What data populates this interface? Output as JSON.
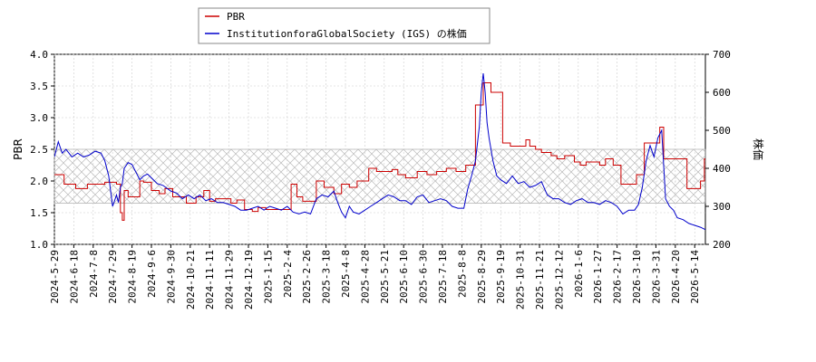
{
  "chart_data": {
    "type": "line",
    "title": "",
    "legend": {
      "placement": "top-center",
      "entries": [
        {
          "label": "PBR",
          "color": "#cc0000"
        },
        {
          "label": "InstitutionforaGlobalSociety (IGS) の株価",
          "color": "#0000cc"
        }
      ]
    },
    "y_left": {
      "label": "PBR",
      "ylim": [
        1.0,
        4.0
      ],
      "ticks": [
        "1.0",
        "1.5",
        "2.0",
        "2.5",
        "3.0",
        "3.5",
        "4.0"
      ]
    },
    "y_right": {
      "label": "株価",
      "ylim": [
        200,
        700
      ],
      "ticks": [
        "200",
        "300",
        "400",
        "500",
        "600",
        "700"
      ]
    },
    "x_ticks": [
      "2024-5-29",
      "2024-6-18",
      "2024-7-8",
      "2024-7-29",
      "2024-8-19",
      "2024-9-6",
      "2024-9-30",
      "2024-10-21",
      "2024-11-11",
      "2024-11-29",
      "2024-12-19",
      "2025-1-15",
      "2025-2-4",
      "2025-2-26",
      "2025-3-18",
      "2025-4-8",
      "2025-4-28",
      "2025-5-21",
      "2025-6-10",
      "2025-6-30",
      "2025-7-18",
      "2025-8-8",
      "2025-8-29",
      "2025-9-19",
      "2025-10-31",
      "2025-11-21",
      "2025-12-12",
      "2026-1-6",
      "2026-1-27",
      "2026-2-17",
      "2026-3-10",
      "2026-3-31",
      "2026-4-20",
      "2026-5-14"
    ],
    "grid": true,
    "pbr_band": [
      1.65,
      2.5
    ],
    "series": [
      {
        "name": "PBR",
        "axis": "left",
        "color": "#cc0000",
        "step": true,
        "x": [
          0,
          0.5,
          1.1,
          1.7,
          2.6,
          3.2,
          3.4,
          3.5,
          3.6,
          3.8,
          4.4,
          4.6,
          5.0,
          5.4,
          5.7,
          6.1,
          6.8,
          7.3,
          7.7,
          8.0,
          8.3,
          8.7,
          9.1,
          9.4,
          9.8,
          10.2,
          10.5,
          10.9,
          11.4,
          11.8,
          12.2,
          12.5,
          12.8,
          13.5,
          13.9,
          14.4,
          14.8,
          15.2,
          15.6,
          16.2,
          16.6,
          17.0,
          17.4,
          17.7,
          18.1,
          18.7,
          19.2,
          19.7,
          20.2,
          20.7,
          21.2,
          21.7,
          22.1,
          22.5,
          22.8,
          23.1,
          23.5,
          24.3,
          24.5,
          24.8,
          25.1,
          25.6,
          25.9,
          26.3,
          26.8,
          27.1,
          27.4,
          27.8,
          28.1,
          28.4,
          28.8,
          29.2,
          29.6,
          30.0,
          30.4,
          30.8,
          31.2,
          31.4,
          32.0,
          32.6,
          33.1,
          33.3,
          33.5,
          33.7
        ],
        "values": [
          2.1,
          1.95,
          1.88,
          1.95,
          1.98,
          1.95,
          1.5,
          1.38,
          1.85,
          1.75,
          2.0,
          1.98,
          1.85,
          1.8,
          1.88,
          1.75,
          1.65,
          1.75,
          1.85,
          1.68,
          1.72,
          1.72,
          1.65,
          1.7,
          1.55,
          1.52,
          1.58,
          1.55,
          1.55,
          1.55,
          1.95,
          1.75,
          1.68,
          2.0,
          1.9,
          1.8,
          1.95,
          1.9,
          2.0,
          2.2,
          2.15,
          2.15,
          2.18,
          2.1,
          2.05,
          2.15,
          2.1,
          2.15,
          2.2,
          2.15,
          2.25,
          3.2,
          3.55,
          3.4,
          3.4,
          2.6,
          2.55,
          2.65,
          2.55,
          2.5,
          2.45,
          2.4,
          2.35,
          2.4,
          2.3,
          2.25,
          2.3,
          2.3,
          2.25,
          2.35,
          2.25,
          1.95,
          1.95,
          2.1,
          2.6,
          2.6,
          2.85,
          2.35,
          2.35,
          1.88,
          1.88,
          2.0,
          2.35,
          2.35
        ]
      },
      {
        "name": "InstitutionforaGlobalSociety (IGS) の株価",
        "axis": "right",
        "color": "#0000cc",
        "step": false,
        "x": [
          0,
          0.2,
          0.4,
          0.6,
          0.9,
          1.2,
          1.5,
          1.8,
          2.1,
          2.4,
          2.6,
          2.8,
          3.0,
          3.2,
          3.3,
          3.4,
          3.5,
          3.6,
          3.8,
          4.0,
          4.2,
          4.4,
          4.6,
          4.8,
          5.0,
          5.3,
          5.6,
          6.0,
          6.3,
          6.6,
          6.9,
          7.2,
          7.5,
          7.8,
          8.1,
          8.4,
          8.7,
          9.0,
          9.3,
          9.6,
          9.9,
          10.2,
          10.5,
          10.8,
          11.1,
          11.4,
          11.7,
          12.0,
          12.3,
          12.6,
          12.9,
          13.2,
          13.5,
          13.8,
          14.1,
          14.4,
          14.6,
          14.8,
          15.0,
          15.2,
          15.4,
          15.7,
          16.0,
          16.3,
          16.6,
          16.9,
          17.2,
          17.5,
          17.8,
          18.1,
          18.4,
          18.7,
          19.0,
          19.3,
          19.6,
          19.9,
          20.2,
          20.5,
          20.8,
          21.1,
          21.3,
          21.5,
          21.7,
          21.9,
          22.0,
          22.1,
          22.2,
          22.3,
          22.4,
          22.6,
          22.8,
          23.0,
          23.3,
          23.6,
          23.9,
          24.2,
          24.5,
          24.8,
          25.1,
          25.4,
          25.7,
          26.0,
          26.3,
          26.6,
          26.9,
          27.2,
          27.5,
          27.8,
          28.1,
          28.4,
          28.7,
          29.0,
          29.3,
          29.6,
          29.9,
          30.1,
          30.3,
          30.5,
          30.7,
          30.9,
          31.1,
          31.3,
          31.5,
          31.7,
          31.9,
          32.1,
          32.4,
          32.7,
          33.0,
          33.3,
          33.5,
          33.7
        ],
        "values": [
          430,
          470,
          440,
          450,
          430,
          440,
          430,
          435,
          445,
          440,
          420,
          380,
          300,
          330,
          310,
          350,
          360,
          400,
          415,
          410,
          390,
          370,
          380,
          385,
          375,
          360,
          355,
          340,
          335,
          320,
          330,
          320,
          330,
          315,
          320,
          310,
          310,
          305,
          300,
          290,
          290,
          295,
          300,
          290,
          300,
          295,
          290,
          300,
          285,
          280,
          285,
          280,
          320,
          330,
          325,
          340,
          310,
          285,
          270,
          300,
          285,
          280,
          290,
          300,
          310,
          320,
          330,
          325,
          315,
          315,
          305,
          325,
          330,
          310,
          315,
          320,
          315,
          300,
          295,
          295,
          345,
          380,
          420,
          510,
          600,
          650,
          600,
          520,
          480,
          420,
          380,
          370,
          360,
          380,
          360,
          365,
          350,
          355,
          365,
          330,
          320,
          320,
          310,
          305,
          315,
          320,
          310,
          310,
          305,
          315,
          310,
          300,
          280,
          290,
          290,
          305,
          350,
          420,
          460,
          430,
          480,
          500,
          320,
          300,
          290,
          270,
          265,
          255,
          250,
          245,
          240,
          235
        ]
      }
    ]
  }
}
